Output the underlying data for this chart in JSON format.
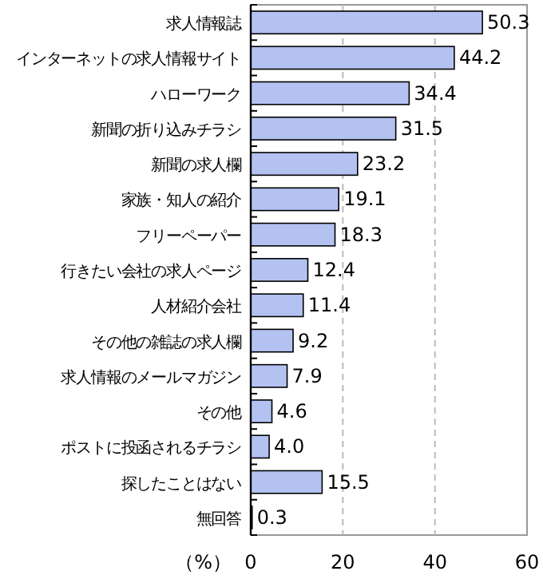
{
  "chart_data": {
    "type": "bar",
    "orientation": "horizontal",
    "categories": [
      "求人情報誌",
      "インターネットの求人情報サイト",
      "ハローワーク",
      "新聞の折り込みチラシ",
      "新聞の求人欄",
      "家族・知人の紹介",
      "フリーペーパー",
      "行きたい会社の求人ページ",
      "人材紹介会社",
      "その他の雑誌の求人欄",
      "求人情報のメールマガジン",
      "その他",
      "ポストに投函されるチラシ",
      "探したことはない",
      "無回答"
    ],
    "values": [
      50.3,
      44.2,
      34.4,
      31.5,
      23.2,
      19.1,
      18.3,
      12.4,
      11.4,
      9.2,
      7.9,
      4.6,
      4.0,
      15.5,
      0.3
    ],
    "color": "#b4c2f2",
    "xlabel": "（%）",
    "xlim": [
      0,
      60
    ],
    "xticks": [
      0,
      20,
      40,
      60
    ],
    "value_labels": [
      "50.3",
      "44.2",
      "34.4",
      "31.5",
      "23.2",
      "19.1",
      "18.3",
      "12.4",
      "11.4",
      "9.2",
      "7.9",
      "4.6",
      "4.0",
      "15.5",
      "0.3"
    ],
    "grid": "x"
  }
}
